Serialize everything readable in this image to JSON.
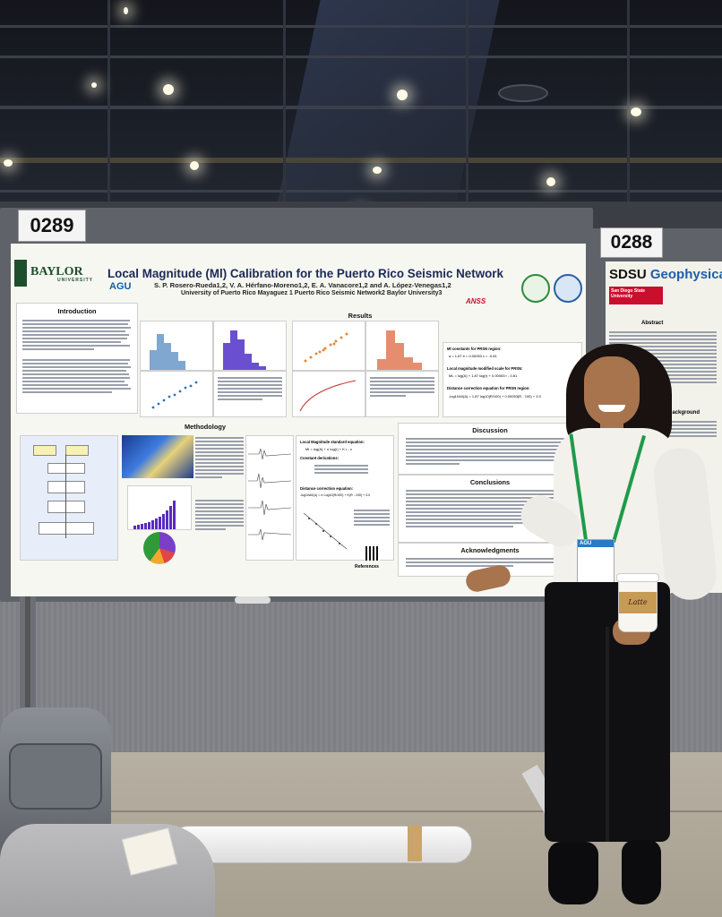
{
  "booth_numbers": {
    "left": "0289",
    "right": "0288"
  },
  "poster": {
    "title": "Local Magnitude (Ml) Calibration for the Puerto Rico Seismic Network",
    "authors": "S. P. Rosero-Rueda1,2, V. A. Hérfano-Moreno1,2, E. A. Vanacore1,2 and A. López-Venegas1,2",
    "affiliations": "University of Puerto Rico Mayaguez 1 Puerto Rico Seismic Network2 Baylor University3",
    "logos": {
      "university": "BAYLOR",
      "university_sub": "UNIVERSITY",
      "agu": "AGU",
      "anss": "ANSS"
    },
    "sections": {
      "introduction": "Introduction",
      "results": "Results",
      "methodology": "Methodology",
      "discussion": "Discussion",
      "conclusions": "Conclusions",
      "acknowledgments": "Acknowledgments",
      "references": "References"
    },
    "results_box": {
      "constants_label": "Ml constants for PRSN region:",
      "constants": "a = 1.87   b = 0.00053   c = -0.81",
      "scale_label": "Local magnitude modified scale for PRSN:",
      "scale_eq": "ML = log(A) + 1.87 log(r) + 0.00053 r - 0.81",
      "distance_label": "Distance correction equation for PRSN region:",
      "distance_eq": "-log10A0(Δ) = 1.87 log10(R/100) + 0.00053(R - 100) + 3.0"
    },
    "method_box": {
      "std_label": "Local Magnitude standard equation:",
      "std_eq": "Ml = log(A) + n log(r) + K r - c",
      "derivation_label": "Constant derivations:",
      "distance_label": "Distance correction equation:",
      "distance_eq": "-log10A0(Δ) = n·Log10(R/100) + K(R - 100) + 3.0"
    }
  },
  "right_poster": {
    "school": "SDSU",
    "heading": "Geophysical in",
    "university": "San Diego State University",
    "section": "Abstract",
    "section2": "Background"
  },
  "cup_label": "Latte",
  "badge_label": "AGU"
}
